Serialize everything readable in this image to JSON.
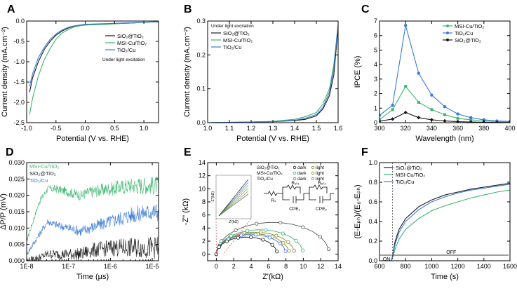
{
  "colors": {
    "black": "#1a1a1a",
    "green": "#3cb46e",
    "blue": "#3a7ad9",
    "gray": "#555555",
    "olive": "#8a8a2a"
  },
  "chart_data": [
    {
      "id": "A",
      "letter": "A",
      "type": "line",
      "xlabel": "Potential (V vs. RHE)",
      "ylabel": "Current density (mA.cm⁻²)",
      "xlim": [
        -1.0,
        1.25
      ],
      "ylim": [
        -2.5,
        0.0
      ],
      "xticks": [
        -1.0,
        -0.5,
        0.0,
        0.5,
        1.0
      ],
      "xtick_labels": [
        "-1.0",
        "-0.5",
        "0.0",
        "0.5",
        "1.0"
      ],
      "yticks": [
        0.0,
        -0.5,
        -1.0,
        -1.5,
        -2.0,
        -2.5
      ],
      "ytick_labels": [
        "0.0",
        "-0.5",
        "-1.0",
        "-1.5",
        "-2.0",
        "-2.5"
      ],
      "legend": [
        "SiO₂@TiO₂",
        "MSI-Cu/TiO₂",
        "TiO₂/Cu"
      ],
      "note": "Under light excitation",
      "series": [
        {
          "name": "SiO₂@TiO₂",
          "color": "#1a1a1a",
          "x": [
            -0.95,
            -0.9,
            -0.8,
            -0.7,
            -0.6,
            -0.5,
            -0.4,
            -0.3,
            -0.2,
            -0.1,
            0.0,
            0.2,
            0.4,
            0.6,
            0.8,
            1.0,
            1.25
          ],
          "y": [
            -1.75,
            -1.4,
            -1.0,
            -0.7,
            -0.5,
            -0.35,
            -0.25,
            -0.18,
            -0.13,
            -0.1,
            -0.09,
            -0.08,
            -0.07,
            -0.06,
            -0.05,
            -0.03,
            -0.02
          ]
        },
        {
          "name": "MSI-Cu/TiO₂",
          "color": "#3cb46e",
          "x": [
            -0.95,
            -0.9,
            -0.8,
            -0.7,
            -0.6,
            -0.5,
            -0.4,
            -0.3,
            -0.2,
            -0.1,
            0.0,
            0.2,
            0.4,
            0.6,
            0.8,
            1.0,
            1.25
          ],
          "y": [
            -2.3,
            -1.9,
            -1.35,
            -0.95,
            -0.68,
            -0.45,
            -0.3,
            -0.22,
            -0.15,
            -0.12,
            -0.1,
            -0.09,
            -0.08,
            -0.06,
            -0.05,
            -0.03,
            -0.02
          ]
        },
        {
          "name": "TiO₂/Cu",
          "color": "#3a7ad9",
          "x": [
            -0.95,
            -0.9,
            -0.8,
            -0.7,
            -0.6,
            -0.5,
            -0.4,
            -0.3,
            -0.2,
            -0.1,
            0.0,
            0.2,
            0.4,
            0.6,
            0.8,
            1.0,
            1.25
          ],
          "y": [
            -1.6,
            -1.3,
            -0.9,
            -0.65,
            -0.45,
            -0.32,
            -0.22,
            -0.16,
            -0.12,
            -0.1,
            -0.08,
            -0.07,
            -0.06,
            -0.05,
            -0.04,
            -0.03,
            -0.02
          ]
        }
      ]
    },
    {
      "id": "B",
      "letter": "B",
      "type": "line",
      "xlabel": "Potential (V vs. RHE)",
      "ylabel": "Current density (mA.cm⁻²)",
      "xlim": [
        1.0,
        1.6
      ],
      "ylim": [
        0.0,
        0.3
      ],
      "xticks": [
        1.0,
        1.1,
        1.2,
        1.3,
        1.4,
        1.5,
        1.6
      ],
      "xtick_labels": [
        "1.0",
        "1.1",
        "1.2",
        "1.3",
        "1.4",
        "1.5",
        "1.6"
      ],
      "yticks": [
        0.0,
        0.1,
        0.2,
        0.3
      ],
      "ytick_labels": [
        "0.0",
        "0.1",
        "0.2",
        "0.3"
      ],
      "legend": [
        "SiO₂@TiO₂",
        "MSI-Cu/TiO₂",
        "TiO₂/Cu"
      ],
      "note": "Under light excitation",
      "series": [
        {
          "name": "SiO₂@TiO₂",
          "color": "#1a1a1a",
          "x": [
            1.0,
            1.1,
            1.2,
            1.3,
            1.4,
            1.45,
            1.5,
            1.53,
            1.56,
            1.58,
            1.6
          ],
          "y": [
            0.0,
            0.001,
            0.002,
            0.003,
            0.006,
            0.01,
            0.02,
            0.04,
            0.08,
            0.14,
            0.28
          ]
        },
        {
          "name": "MSI-Cu/TiO₂",
          "color": "#3cb46e",
          "x": [
            1.0,
            1.1,
            1.2,
            1.3,
            1.4,
            1.45,
            1.5,
            1.53,
            1.56,
            1.58,
            1.6
          ],
          "y": [
            0.0,
            0.001,
            0.002,
            0.004,
            0.01,
            0.018,
            0.03,
            0.055,
            0.1,
            0.17,
            0.29
          ]
        },
        {
          "name": "TiO₂/Cu",
          "color": "#3a7ad9",
          "x": [
            1.0,
            1.1,
            1.2,
            1.3,
            1.4,
            1.45,
            1.5,
            1.53,
            1.56,
            1.58,
            1.6
          ],
          "y": [
            0.0,
            0.001,
            0.002,
            0.003,
            0.007,
            0.013,
            0.024,
            0.045,
            0.09,
            0.16,
            0.29
          ]
        }
      ]
    },
    {
      "id": "C",
      "letter": "C",
      "type": "line",
      "xlabel": "Wavelength (nm)",
      "ylabel": "IPCE (%)",
      "xlim": [
        300,
        400
      ],
      "ylim": [
        0,
        7
      ],
      "xticks": [
        300,
        320,
        340,
        360,
        380,
        400
      ],
      "xtick_labels": [
        "300",
        "320",
        "340",
        "360",
        "380",
        "400"
      ],
      "yticks": [
        0,
        1,
        2,
        3,
        4,
        5,
        6,
        7
      ],
      "ytick_labels": [
        "0",
        "1",
        "2",
        "3",
        "4",
        "5",
        "6",
        "7"
      ],
      "legend": [
        "MSI-Cu/TiO₂",
        "TiO₂/Cu",
        "SiO₂@TiO₂"
      ],
      "series": [
        {
          "name": "MSI-Cu/TiO₂",
          "color": "#3cb46e",
          "marker": "square",
          "x": [
            300,
            310,
            320,
            330,
            340,
            350,
            360,
            370,
            380,
            390,
            400
          ],
          "y": [
            0.2,
            0.9,
            2.5,
            1.4,
            0.9,
            0.55,
            0.3,
            0.2,
            0.12,
            0.08,
            0.05
          ]
        },
        {
          "name": "TiO₂/Cu",
          "color": "#3a7ad9",
          "marker": "circle",
          "x": [
            300,
            310,
            320,
            330,
            340,
            350,
            360,
            370,
            380,
            390,
            400
          ],
          "y": [
            0.5,
            1.2,
            6.7,
            3.4,
            1.9,
            1.1,
            0.6,
            0.35,
            0.2,
            0.12,
            0.08
          ]
        },
        {
          "name": "SiO₂@TiO₂",
          "color": "#1a1a1a",
          "marker": "diamond",
          "x": [
            300,
            310,
            320,
            330,
            340,
            350,
            360,
            370,
            380,
            390,
            400
          ],
          "y": [
            0.1,
            0.25,
            0.7,
            0.35,
            0.2,
            0.12,
            0.07,
            0.05,
            0.03,
            0.02,
            0.01
          ]
        }
      ]
    },
    {
      "id": "D",
      "letter": "D",
      "type": "line",
      "xlabel": "Time (µs)",
      "ylabel": "ΔP/P (mV)",
      "xscale": "log",
      "xlim_exp": [
        -8,
        -4.85
      ],
      "ylim": [
        0.0,
        0.03
      ],
      "xticks_exp": [
        -8,
        -7,
        -6,
        -5
      ],
      "xtick_labels": [
        "1E-8",
        "1E-7",
        "1E-6",
        "1E-5"
      ],
      "yticks": [
        0.0,
        0.005,
        0.01,
        0.015,
        0.02,
        0.025,
        0.03
      ],
      "ytick_labels": [
        "0.000",
        "0.005",
        "0.010",
        "0.015",
        "0.020",
        "0.025",
        "0.030"
      ],
      "legend": [
        "MSI-Cu/TiO₂",
        "SiO₂@TiO₂",
        "TiO₂/Cu"
      ],
      "series": [
        {
          "name": "MSI-Cu/TiO₂",
          "color": "#3cb46e",
          "x_exp": [
            -8,
            -7.7,
            -7.5,
            -7.3,
            -7.0,
            -6.7,
            -6.5,
            -6.0,
            -5.5,
            -5.0,
            -4.85
          ],
          "y": [
            0.006,
            0.018,
            0.022,
            0.022,
            0.021,
            0.02,
            0.021,
            0.022,
            0.023,
            0.023,
            0.023
          ],
          "noise": 0.0025
        },
        {
          "name": "TiO₂/Cu",
          "color": "#3a7ad9",
          "x_exp": [
            -8,
            -7.7,
            -7.5,
            -7.3,
            -7.0,
            -6.7,
            -6.5,
            -6.0,
            -5.5,
            -5.0,
            -4.85
          ],
          "y": [
            0.002,
            0.008,
            0.012,
            0.011,
            0.01,
            0.009,
            0.01,
            0.012,
            0.014,
            0.015,
            0.015
          ],
          "noise": 0.0025
        },
        {
          "name": "SiO₂@TiO₂",
          "color": "#1a1a1a",
          "x_exp": [
            -8,
            -7.7,
            -7.5,
            -7.3,
            -7.0,
            -6.7,
            -6.5,
            -6.0,
            -5.5,
            -5.0,
            -4.85
          ],
          "y": [
            0.0,
            0.001,
            0.002,
            0.002,
            0.002,
            0.002,
            0.003,
            0.004,
            0.004,
            0.004,
            0.004
          ],
          "noise": 0.003
        }
      ]
    },
    {
      "id": "E",
      "letter": "E",
      "type": "scatter",
      "xlabel": "Z'(kΩ)",
      "ylabel": "-Z\" (kΩ)",
      "xlim": [
        -1,
        14
      ],
      "ylim": [
        -1,
        14
      ],
      "xticks": [
        0,
        2,
        4,
        6,
        8,
        10,
        12,
        14
      ],
      "xtick_labels": [
        "0",
        "2",
        "4",
        "6",
        "8",
        "10",
        "12",
        "14"
      ],
      "yticks": [
        0,
        2,
        4,
        6,
        8,
        10,
        12,
        14
      ],
      "ytick_labels": [
        "0",
        "2",
        "4",
        "6",
        "8",
        "10",
        "12",
        "14"
      ],
      "legend_rows": [
        {
          "name": "SiO₂@TiO₂",
          "dark": "dark",
          "light": "light",
          "color": "#1a1a1a"
        },
        {
          "name": "MSI-Cu/TiO₂",
          "dark": "dark",
          "light": "light",
          "color": "#3cb46e"
        },
        {
          "name": "TiO₂/Cu",
          "dark": "dark",
          "light": "light",
          "color": "#3a7ad9"
        }
      ],
      "circuit": {
        "rs": "Rₛ",
        "rct1": "Rₑₜ₁",
        "rct2": "Rₑₜ₂",
        "cpe1": "CPE₁",
        "cpe2": "CPE₂"
      },
      "inset_labels": {
        "x": "Z'(kΩ)",
        "y": "-Z\"(kΩ)"
      },
      "series": [
        {
          "name": "SiO₂@TiO₂ dark",
          "color": "#555555",
          "radius": 6.5,
          "center": 6.5
        },
        {
          "name": "SiO₂@TiO₂ light",
          "color": "#8a8a2a",
          "radius": 4.5,
          "center": 4.5
        },
        {
          "name": "MSI-Cu/TiO₂ dark",
          "color": "#3cb46e",
          "radius": 5.0,
          "center": 5.0
        },
        {
          "name": "MSI-Cu/TiO₂ light",
          "color": "#8a8a2a",
          "radius": 4.2,
          "center": 4.2
        },
        {
          "name": "TiO₂/Cu dark",
          "color": "#3a7ad9",
          "radius": 4.0,
          "center": 4.0
        },
        {
          "name": "TiO₂/Cu light",
          "color": "#1a1a1a",
          "radius": 3.5,
          "center": 3.5
        }
      ]
    },
    {
      "id": "F",
      "letter": "F",
      "type": "line",
      "xlabel": "Time (s)",
      "ylabel": "(E-Eₚₕ)/(E₀-Eₚₕ)",
      "xlim": [
        600,
        1600
      ],
      "ylim": [
        0.0,
        1.0
      ],
      "xticks": [
        600,
        800,
        1000,
        1200,
        1400,
        1600
      ],
      "xtick_labels": [
        "600",
        "800",
        "1000",
        "1200",
        "1400",
        "1600"
      ],
      "yticks": [
        0.0,
        0.2,
        0.4,
        0.6,
        0.8,
        1.0
      ],
      "ytick_labels": [
        "0.0",
        "0.2",
        "0.4",
        "0.6",
        "0.8",
        "1.0"
      ],
      "legend": [
        "SiO₂@TiO₂",
        "MSI-Cu/TiO₂",
        "TiO₂/Cu"
      ],
      "on_label": "ON",
      "off_label": "OFF",
      "series": [
        {
          "name": "SiO₂@TiO₂",
          "color": "#1a1a1a",
          "x": [
            600,
            690,
            700,
            720,
            750,
            800,
            900,
            1000,
            1100,
            1200,
            1300,
            1400,
            1500,
            1600
          ],
          "y": [
            0.0,
            0.0,
            0.05,
            0.2,
            0.32,
            0.43,
            0.55,
            0.62,
            0.67,
            0.7,
            0.73,
            0.75,
            0.77,
            0.79
          ]
        },
        {
          "name": "MSI-Cu/TiO₂",
          "color": "#3cb46e",
          "x": [
            600,
            690,
            700,
            720,
            750,
            800,
            900,
            1000,
            1100,
            1200,
            1300,
            1400,
            1500,
            1600
          ],
          "y": [
            0.0,
            0.0,
            0.03,
            0.12,
            0.22,
            0.32,
            0.43,
            0.51,
            0.56,
            0.6,
            0.64,
            0.67,
            0.7,
            0.72
          ]
        },
        {
          "name": "TiO₂/Cu",
          "color": "#3a7ad9",
          "x": [
            600,
            690,
            700,
            720,
            750,
            800,
            900,
            1000,
            1100,
            1200,
            1300,
            1400,
            1500,
            1600
          ],
          "y": [
            0.0,
            0.0,
            0.04,
            0.17,
            0.29,
            0.4,
            0.52,
            0.6,
            0.65,
            0.69,
            0.72,
            0.74,
            0.76,
            0.78
          ]
        }
      ]
    }
  ]
}
